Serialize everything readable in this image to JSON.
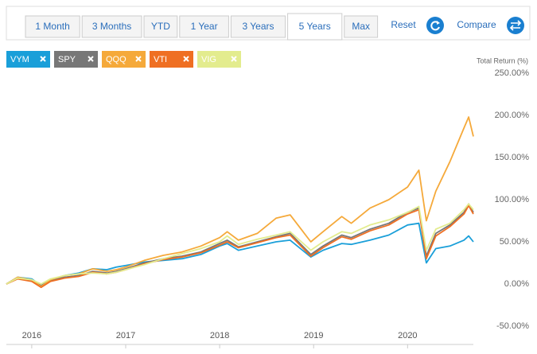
{
  "toolbar": {
    "ranges": [
      "1 Month",
      "3 Months",
      "YTD",
      "1 Year",
      "3 Years",
      "5 Years",
      "Max"
    ],
    "reset": "Reset",
    "compare": "Compare"
  },
  "chart_data": {
    "type": "line",
    "y_axis_label": "Total Return (%)",
    "x": [
      2015.73,
      2015.85,
      2016.0,
      2016.1,
      2016.2,
      2016.35,
      2016.5,
      2016.65,
      2016.8,
      2016.9,
      2017.0,
      2017.2,
      2017.4,
      2017.6,
      2017.8,
      2018.0,
      2018.08,
      2018.2,
      2018.4,
      2018.6,
      2018.75,
      2018.97,
      2019.1,
      2019.3,
      2019.4,
      2019.6,
      2019.8,
      2020.0,
      2020.12,
      2020.2,
      2020.3,
      2020.45,
      2020.6,
      2020.65,
      2020.7
    ],
    "xlim": [
      2015.73,
      2020.7
    ],
    "xticks": [
      2016,
      2017,
      2018,
      2019,
      2020
    ],
    "ylim": [
      -50,
      250
    ],
    "yticks": [
      {
        "value": -50,
        "label": "-50.00%"
      },
      {
        "value": 0,
        "label": "0.00%"
      },
      {
        "value": 50,
        "label": "50.00%"
      },
      {
        "value": 100,
        "label": "100.00%"
      },
      {
        "value": 150,
        "label": "150.00%"
      },
      {
        "value": 200,
        "label": "200.00%"
      },
      {
        "value": 250,
        "label": "250.00%"
      }
    ],
    "grid": false,
    "series": [
      {
        "name": "VYM",
        "color": "#1a9fd9",
        "values": [
          0,
          8,
          6,
          -2,
          5,
          10,
          13,
          18,
          17,
          20,
          22,
          26,
          28,
          30,
          35,
          45,
          48,
          40,
          45,
          50,
          52,
          32,
          40,
          48,
          47,
          52,
          58,
          70,
          72,
          25,
          42,
          45,
          52,
          57,
          50
        ]
      },
      {
        "name": "SPY",
        "color": "#777777",
        "values": [
          0,
          7,
          4,
          -2,
          4,
          8,
          10,
          15,
          13,
          15,
          18,
          25,
          30,
          33,
          38,
          48,
          52,
          44,
          50,
          56,
          60,
          35,
          45,
          58,
          55,
          65,
          72,
          85,
          90,
          33,
          60,
          70,
          85,
          95,
          85
        ]
      },
      {
        "name": "QQQ",
        "color": "#f5a93a",
        "values": [
          0,
          8,
          5,
          -3,
          5,
          10,
          12,
          18,
          15,
          17,
          20,
          28,
          34,
          38,
          45,
          55,
          62,
          52,
          60,
          78,
          82,
          50,
          62,
          80,
          72,
          90,
          100,
          115,
          135,
          75,
          110,
          145,
          185,
          198,
          175
        ]
      },
      {
        "name": "VTI",
        "color": "#ef6f23",
        "values": [
          0,
          6,
          3,
          -4,
          3,
          7,
          9,
          14,
          12,
          14,
          17,
          24,
          29,
          32,
          37,
          46,
          50,
          43,
          49,
          55,
          58,
          33,
          43,
          56,
          53,
          63,
          70,
          83,
          88,
          30,
          57,
          68,
          83,
          93,
          83
        ]
      },
      {
        "name": "VIG",
        "color": "#e3ec8e",
        "values": [
          0,
          7,
          5,
          0,
          6,
          10,
          12,
          13,
          12,
          14,
          17,
          23,
          30,
          36,
          42,
          50,
          57,
          47,
          53,
          58,
          62,
          40,
          50,
          62,
          60,
          70,
          76,
          85,
          92,
          40,
          65,
          72,
          88,
          95,
          88
        ]
      }
    ]
  }
}
